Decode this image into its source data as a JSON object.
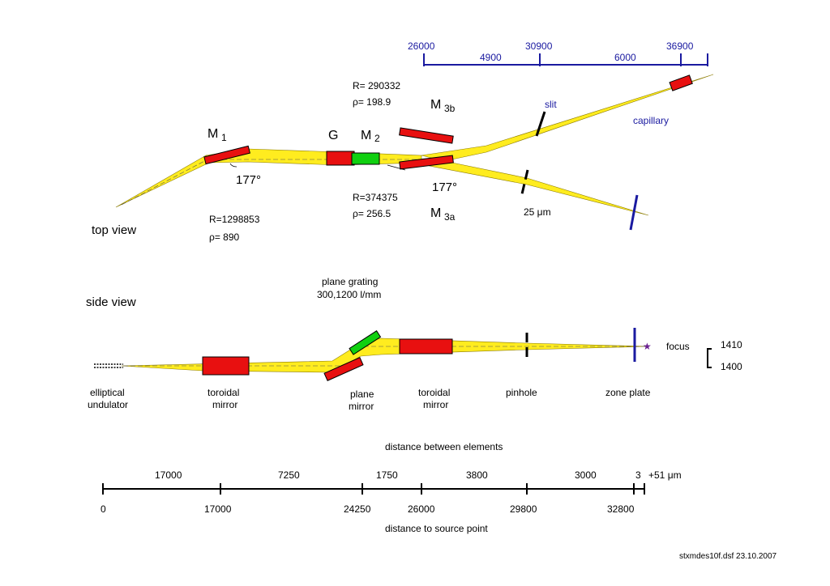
{
  "top_scale": {
    "ticks": [
      "26000",
      "30900",
      "36900"
    ],
    "segments": [
      "4900",
      "6000"
    ]
  },
  "top_view": {
    "title": "top view",
    "m1_label": "M",
    "m1_sub": "1",
    "g_label": "G",
    "m2_label": "M",
    "m2_sub": "2",
    "m3b_label": "M",
    "m3b_sub": "3b",
    "m3a_label": "M",
    "m3a_sub": "3a",
    "angle_m1": "177°",
    "angle_m3": "177°",
    "m1_r": "R=1298853",
    "m1_rho": "ρ= 890",
    "m3b_r": "R= 290332",
    "m3b_rho": "ρ= 198.9",
    "m3a_r": "R=374375",
    "m3a_rho": "ρ= 256.5",
    "slit": "slit",
    "capillary": "capillary",
    "pinhole_size": "25 μm"
  },
  "side_view": {
    "title": "side view",
    "grating_line1": "plane grating",
    "grating_line2": "300,1200 l/mm",
    "focus": "focus",
    "focus_upper": "1410",
    "focus_lower": "1400",
    "elements": [
      {
        "line1": "elliptical",
        "line2": "undulator"
      },
      {
        "line1": "toroidal",
        "line2": "mirror"
      },
      {
        "line1": "plane",
        "line2": "mirror"
      },
      {
        "line1": "toroidal",
        "line2": "mirror"
      },
      {
        "line1": "pinhole",
        "line2": ""
      },
      {
        "line1": "zone plate",
        "line2": ""
      }
    ]
  },
  "bottom_scale": {
    "title_top": "distance between elements",
    "title_bottom": "distance to source point",
    "segments": [
      "17000",
      "7250",
      "1750",
      "3800",
      "3000",
      "3",
      "+51 μm"
    ],
    "positions": [
      "0",
      "17000",
      "24250",
      "26000",
      "29800",
      "32800"
    ]
  },
  "footer": "stxmdes10f.dsf  23.10.2007"
}
